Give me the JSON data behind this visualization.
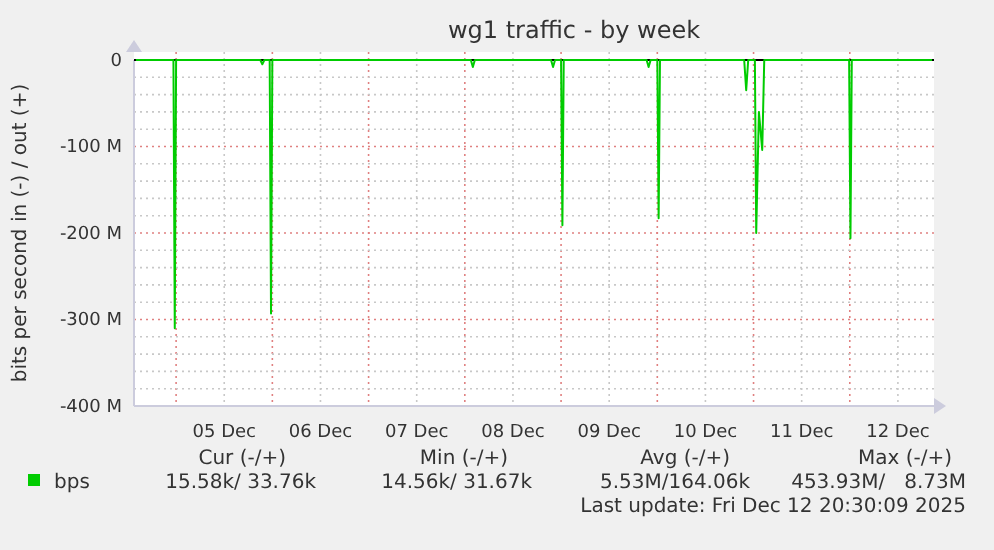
{
  "chart_data": {
    "type": "line",
    "title": "wg1 traffic - by week",
    "ylabel": "bits per second in (-) / out (+)",
    "x": [
      "2025-12-04T14:00",
      "2025-12-04T23:20",
      "2025-12-04T23:40",
      "2025-12-05T00:00",
      "2025-12-05T21:00",
      "2025-12-05T21:30",
      "2025-12-05T22:00",
      "2025-12-05T23:20",
      "2025-12-05T23:40",
      "2025-12-06T00:00",
      "2025-12-08T01:30",
      "2025-12-08T02:00",
      "2025-12-08T02:30",
      "2025-12-08T21:30",
      "2025-12-08T22:00",
      "2025-12-08T22:30",
      "2025-12-09T00:00",
      "2025-12-09T00:20",
      "2025-12-09T00:40",
      "2025-12-09T21:20",
      "2025-12-09T21:50",
      "2025-12-09T22:20",
      "2025-12-10T00:00",
      "2025-12-10T00:20",
      "2025-12-10T00:40",
      "2025-12-10T21:40",
      "2025-12-10T22:10",
      "2025-12-10T22:40",
      "2025-12-11T00:20",
      "2025-12-11T00:40",
      "2025-12-11T01:20",
      "2025-12-11T02:10",
      "2025-12-11T02:40",
      "2025-12-11T23:50",
      "2025-12-12T00:10",
      "2025-12-12T00:30",
      "2025-12-12T20:30"
    ],
    "series": [
      {
        "name": "bps",
        "color": "#00cc00",
        "values": [
          0,
          0,
          -310,
          0,
          0,
          -5,
          0,
          0,
          -293,
          0,
          0,
          -8,
          0,
          0,
          -8,
          0,
          0,
          -191,
          0,
          0,
          -8,
          0,
          0,
          -183,
          0,
          0,
          -35,
          0,
          0,
          -200,
          -60,
          -104,
          0,
          0,
          -206,
          0,
          0
        ]
      }
    ],
    "xlim": [
      "2025-12-04T13:30",
      "2025-12-12T21:00"
    ],
    "xticks": [
      {
        "value": "2025-12-05T00:00",
        "label": null
      },
      {
        "value": "2025-12-05T12:00",
        "label": "05 Dec"
      },
      {
        "value": "2025-12-06T00:00",
        "label": null
      },
      {
        "value": "2025-12-06T12:00",
        "label": "06 Dec"
      },
      {
        "value": "2025-12-07T00:00",
        "label": null
      },
      {
        "value": "2025-12-07T12:00",
        "label": "07 Dec"
      },
      {
        "value": "2025-12-08T00:00",
        "label": null
      },
      {
        "value": "2025-12-08T12:00",
        "label": "08 Dec"
      },
      {
        "value": "2025-12-09T00:00",
        "label": null
      },
      {
        "value": "2025-12-09T12:00",
        "label": "09 Dec"
      },
      {
        "value": "2025-12-10T00:00",
        "label": null
      },
      {
        "value": "2025-12-10T12:00",
        "label": "10 Dec"
      },
      {
        "value": "2025-12-11T00:00",
        "label": null
      },
      {
        "value": "2025-12-11T12:00",
        "label": "11 Dec"
      },
      {
        "value": "2025-12-12T00:00",
        "label": null
      },
      {
        "value": "2025-12-12T12:00",
        "label": "12 Dec"
      }
    ],
    "ylim": [
      -400,
      0
    ],
    "yticks": [
      {
        "value": -400,
        "label": "-400 M"
      },
      {
        "value": -380,
        "label": null
      },
      {
        "value": -360,
        "label": null
      },
      {
        "value": -340,
        "label": null
      },
      {
        "value": -320,
        "label": null
      },
      {
        "value": -300,
        "label": "-300 M"
      },
      {
        "value": -280,
        "label": null
      },
      {
        "value": -260,
        "label": null
      },
      {
        "value": -240,
        "label": null
      },
      {
        "value": -220,
        "label": null
      },
      {
        "value": -200,
        "label": "-200 M"
      },
      {
        "value": -180,
        "label": null
      },
      {
        "value": -160,
        "label": null
      },
      {
        "value": -140,
        "label": null
      },
      {
        "value": -120,
        "label": null
      },
      {
        "value": -100,
        "label": "-100 M"
      },
      {
        "value": -80,
        "label": null
      },
      {
        "value": -60,
        "label": null
      },
      {
        "value": -40,
        "label": null
      },
      {
        "value": -20,
        "label": null
      },
      {
        "value": 0,
        "label": "0"
      }
    ],
    "grid": true,
    "legend": "bottom",
    "marker": "none",
    "line_style": "solid",
    "annotations": [
      "Cur (-/+)",
      "Min (-/+)",
      "Avg (-/+)",
      "Max (-/+)",
      "15.58k/ 33.76k",
      "14.56k/ 31.67k",
      "5.53M/164.06k",
      "453.93M/   8.73M",
      "Last update: Fri Dec 12 20:30:09 2025"
    ]
  }
}
